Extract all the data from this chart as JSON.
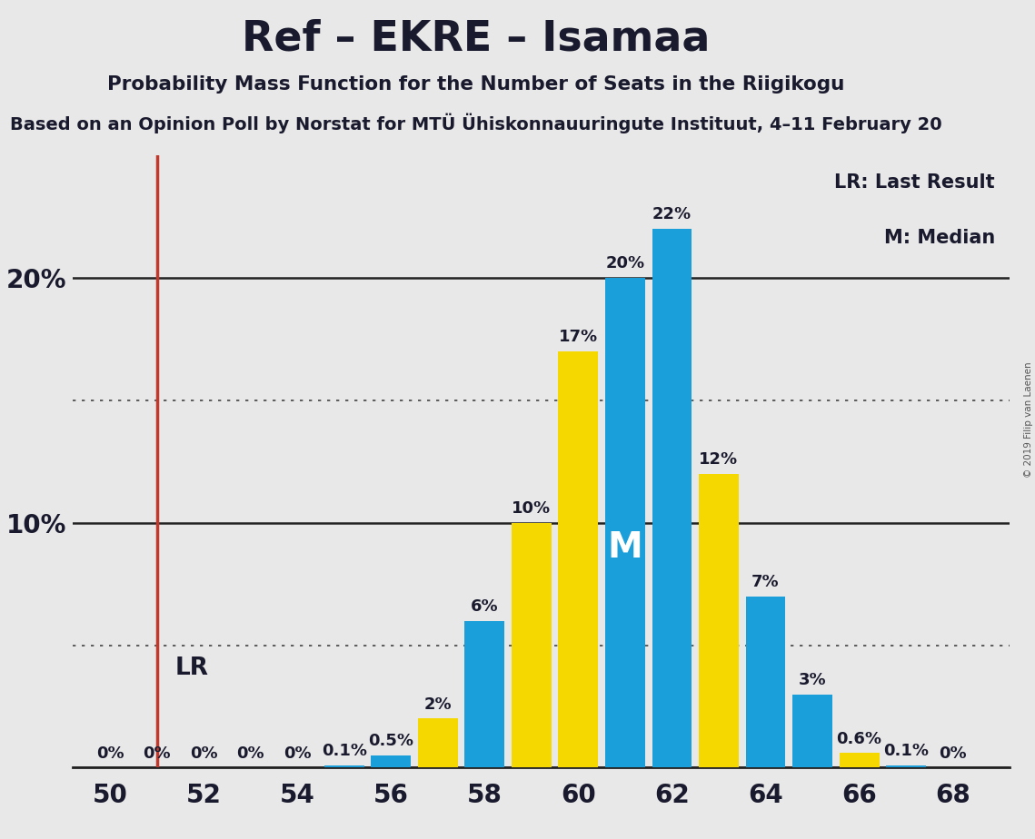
{
  "title": "Ref – EKRE – Isamaa",
  "subtitle": "Probability Mass Function for the Number of Seats in the Riigikogu",
  "subtitle2": "Based on an Opinion Poll by Norstat for MTÜ Ühiskonnauuringute Instituut, 4–11 February 20",
  "copyright": "© 2019 Filip van Laenen",
  "seats": [
    50,
    51,
    52,
    53,
    54,
    55,
    56,
    57,
    58,
    59,
    60,
    61,
    62,
    63,
    64,
    65,
    66,
    67,
    68
  ],
  "probabilities": [
    0.0,
    0.0,
    0.0,
    0.0,
    0.0,
    0.1,
    0.5,
    2.0,
    6.0,
    10.0,
    17.0,
    20.0,
    22.0,
    12.0,
    7.0,
    3.0,
    0.6,
    0.1,
    0.0
  ],
  "bar_colors": [
    "#1a9fda",
    "#1a9fda",
    "#1a9fda",
    "#1a9fda",
    "#1a9fda",
    "#1a9fda",
    "#1a9fda",
    "#f5d800",
    "#1a9fda",
    "#f5d800",
    "#f5d800",
    "#1a9fda",
    "#1a9fda",
    "#f5d800",
    "#1a9fda",
    "#1a9fda",
    "#f5d800",
    "#1a9fda",
    "#1a9fda"
  ],
  "labels": [
    "0%",
    "0%",
    "0%",
    "0%",
    "0%",
    "0.1%",
    "0.5%",
    "2%",
    "6%",
    "10%",
    "17%",
    "20%",
    "22%",
    "12%",
    "7%",
    "3%",
    "0.6%",
    "0.1%",
    "0%"
  ],
  "lr_seat": 51,
  "median_seat": 61,
  "bg_color": "#e8e8e8",
  "lr_color": "#c0392b",
  "blue_color": "#1a9fda",
  "yellow_color": "#f5d800",
  "dark_blue_color": "#1565a0",
  "solid_gridlines": [
    0,
    10,
    20
  ],
  "dotted_gridlines": [
    5,
    15
  ],
  "median_label": "M",
  "lr_label": "LR",
  "legend_lr": "LR: Last Result",
  "legend_m": "M: Median",
  "bar_width": 0.85,
  "ylim_max": 25,
  "xlim_min": 49.2,
  "xlim_max": 69.2
}
